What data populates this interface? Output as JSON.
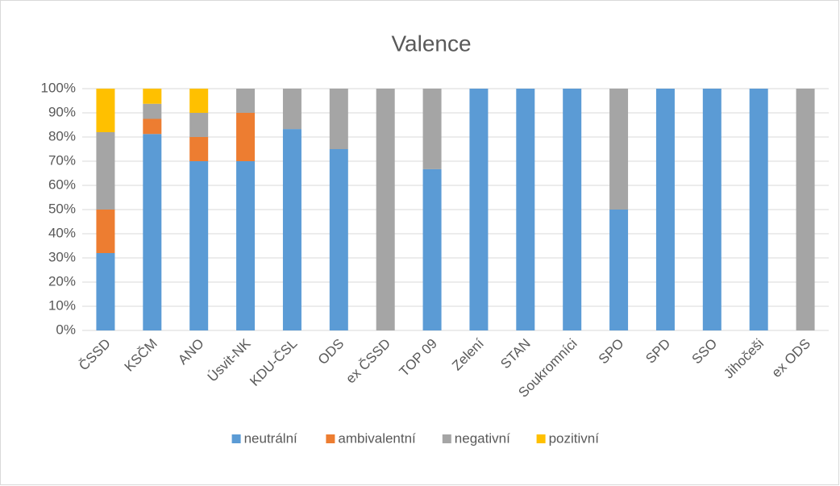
{
  "chart_data": {
    "type": "stacked_bar_100",
    "title": "Valence",
    "categories": [
      "ČSSD",
      "KSČM",
      "ANO",
      "Úsvit-NK",
      "KDU-ČSL",
      "ODS",
      "ex ČSSD",
      "TOP 09",
      "Zelení",
      "STAN",
      "Soukromníci",
      "SPO",
      "SPD",
      "SSO",
      "Jihočeši",
      "ex ODS"
    ],
    "series": [
      {
        "name": "neutrální",
        "color": "#5b9bd5",
        "values": [
          32,
          81.25,
          70,
          70,
          83.3,
          75,
          0,
          66.7,
          100,
          100,
          100,
          50,
          100,
          100,
          100,
          0
        ]
      },
      {
        "name": "ambivalentní",
        "color": "#ed7d31",
        "values": [
          18,
          6.25,
          10,
          20,
          0,
          0,
          0,
          0,
          0,
          0,
          0,
          0,
          0,
          0,
          0,
          0
        ]
      },
      {
        "name": "negativní",
        "color": "#a5a5a5",
        "values": [
          32,
          6.25,
          10,
          10,
          16.7,
          25,
          100,
          33.3,
          0,
          0,
          0,
          50,
          0,
          0,
          0,
          100
        ]
      },
      {
        "name": "pozitivní",
        "color": "#ffc000",
        "values": [
          18,
          6.25,
          10,
          0,
          0,
          0,
          0,
          0,
          0,
          0,
          0,
          0,
          0,
          0,
          0,
          0
        ]
      }
    ],
    "ylim": [
      0,
      100
    ],
    "yticks": [
      {
        "value": 0,
        "label": "0%"
      },
      {
        "value": 10,
        "label": "10%"
      },
      {
        "value": 20,
        "label": "20%"
      },
      {
        "value": 30,
        "label": "30%"
      },
      {
        "value": 40,
        "label": "40%"
      },
      {
        "value": 50,
        "label": "50%"
      },
      {
        "value": 60,
        "label": "60%"
      },
      {
        "value": 70,
        "label": "70%"
      },
      {
        "value": 80,
        "label": "80%"
      },
      {
        "value": 90,
        "label": "90%"
      },
      {
        "value": 100,
        "label": "100%"
      }
    ],
    "grid": true,
    "legend": "bottom"
  }
}
